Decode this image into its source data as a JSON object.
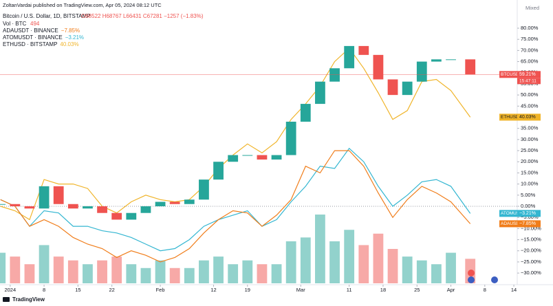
{
  "chart_data": {
    "type": "candlestick",
    "publisher": "ZoltanVardai published on TradingView.com, Apr 05, 2024 08:12 UTC",
    "symbol": "Bitcoin / U.S. Dollar, 1D, BITSTAMP",
    "ohlc": "O68522 H68767 L66431 C67281 −1257 (−1.83%)",
    "scale_mode": "Mixed",
    "brand": "TradingView",
    "x": [
      -2,
      1,
      4,
      7,
      10,
      13,
      16,
      19,
      22,
      25,
      28,
      31,
      34,
      37,
      40,
      43,
      46,
      49,
      52,
      55,
      58,
      61,
      64,
      67,
      70,
      73,
      76,
      79,
      82,
      85,
      88,
      91,
      95
    ],
    "xlim": [
      -2.1,
      104.7
    ],
    "xticks": [
      {
        "value": 0,
        "label": "2024"
      },
      {
        "value": 7,
        "label": "8"
      },
      {
        "value": 14,
        "label": "15"
      },
      {
        "value": 21,
        "label": "22"
      },
      {
        "value": 31,
        "label": "Feb"
      },
      {
        "value": 42,
        "label": "12"
      },
      {
        "value": 49,
        "label": "19"
      },
      {
        "value": 60,
        "label": "Mar"
      },
      {
        "value": 70,
        "label": "11"
      },
      {
        "value": 77,
        "label": "18"
      },
      {
        "value": 84,
        "label": "25"
      },
      {
        "value": 91,
        "label": "Apr"
      },
      {
        "value": 98,
        "label": "8"
      },
      {
        "value": 104,
        "label": "14"
      }
    ],
    "ylim": [
      -34.6,
      83.4
    ],
    "yticks": [
      {
        "value": 80,
        "label": "80.00%"
      },
      {
        "value": 75,
        "label": "75.00%"
      },
      {
        "value": 70,
        "label": "70.00%"
      },
      {
        "value": 65,
        "label": "65.00%"
      },
      {
        "value": 60,
        "label": "60.00%"
      },
      {
        "value": 55,
        "label": "55.00%"
      },
      {
        "value": 50,
        "label": "50.00%"
      },
      {
        "value": 45,
        "label": "45.00%"
      },
      {
        "value": 40,
        "label": "40.00%"
      },
      {
        "value": 35,
        "label": "35.00%"
      },
      {
        "value": 30,
        "label": "30.00%"
      },
      {
        "value": 25,
        "label": "25.00%"
      },
      {
        "value": 20,
        "label": "20.00%"
      },
      {
        "value": 15,
        "label": "15.00%"
      },
      {
        "value": 10,
        "label": "10.00%"
      },
      {
        "value": 5,
        "label": "5.00%"
      },
      {
        "value": 0,
        "label": "0.00%"
      },
      {
        "value": -5,
        "label": "−5.00%"
      },
      {
        "value": -10,
        "label": "−10.00%"
      },
      {
        "value": -15,
        "label": "−15.00%"
      },
      {
        "value": -20,
        "label": "−20.00%"
      },
      {
        "value": -25,
        "label": "−25.00%"
      },
      {
        "value": -30,
        "label": "−30.00%"
      }
    ],
    "grid": false,
    "candles": {
      "name": "BTCUSD",
      "color_up": "#26a69a",
      "color_down": "#ef5350",
      "countdown": "15:47:11",
      "values": [
        1,
        0,
        -1,
        9,
        1,
        -1,
        0,
        -3,
        -6,
        -3,
        0,
        2,
        1,
        3,
        12,
        20,
        23,
        23,
        21,
        23,
        38,
        46,
        56,
        62,
        72,
        68,
        57,
        50,
        56,
        65,
        66,
        66,
        59.21
      ],
      "value_labels": [
        null,
        null,
        null,
        null,
        null,
        null,
        null,
        null,
        null,
        null,
        null,
        null,
        null,
        null,
        null,
        null,
        null,
        null,
        null,
        null,
        null,
        null,
        null,
        null,
        null,
        null,
        null,
        null,
        null,
        null,
        null,
        null,
        "59.21%"
      ]
    },
    "volume": {
      "label": "Vol · BTC",
      "values": [
        616,
        539,
        385,
        770,
        539,
        462,
        385,
        462,
        539,
        385,
        308,
        462,
        308,
        308,
        462,
        539,
        385,
        462,
        385,
        385,
        847,
        924,
        1386,
        847,
        1078,
        770,
        1001,
        693,
        539,
        462,
        385,
        616,
        494
      ]
    },
    "series": [
      {
        "name": "ETHUSD",
        "legend_label": "ETHUSD · BITSTAMP",
        "color": "#f0b429",
        "values": [
          0,
          -2,
          -6,
          12,
          10,
          10,
          8,
          0,
          -3,
          2,
          5,
          3,
          2,
          3,
          9,
          17,
          23,
          28,
          24,
          29,
          39,
          46,
          54,
          65,
          71,
          62,
          51,
          39,
          43,
          56,
          57,
          52,
          40.03
        ],
        "value_labels": [
          null,
          null,
          null,
          null,
          null,
          null,
          null,
          null,
          null,
          null,
          null,
          null,
          null,
          null,
          null,
          null,
          null,
          null,
          null,
          null,
          null,
          null,
          null,
          null,
          null,
          null,
          null,
          null,
          null,
          null,
          null,
          null,
          "40.03%"
        ]
      },
      {
        "name": "ATOMUSDT",
        "legend_label": "ATOMUSDT · BINANCE",
        "color": "#33b6d1",
        "values": [
          3,
          0,
          -9,
          -2,
          -3,
          -9,
          -9,
          -11,
          -12,
          -14,
          -17,
          -20,
          -19,
          -15,
          -9,
          -6,
          -4,
          -2,
          -9,
          -6,
          2,
          9,
          18,
          17,
          26,
          20,
          9,
          0,
          5,
          11,
          12,
          9,
          -3.21
        ],
        "value_labels": [
          null,
          null,
          null,
          null,
          null,
          null,
          null,
          null,
          null,
          null,
          null,
          null,
          null,
          null,
          null,
          null,
          null,
          null,
          null,
          null,
          null,
          null,
          null,
          null,
          null,
          null,
          null,
          null,
          null,
          null,
          null,
          null,
          "−3.21%"
        ]
      },
      {
        "name": "ADAUSDT",
        "legend_label": "ADAUSDT · BINANCE",
        "color": "#f07d1a",
        "values": [
          3,
          0,
          -9,
          -6,
          -9,
          -14,
          -17,
          -19,
          -23,
          -20,
          -22,
          -25,
          -23,
          -19,
          -12,
          -6,
          -2,
          -3,
          -9,
          -4,
          3,
          18,
          15,
          25,
          25,
          18,
          6,
          -5,
          3,
          9,
          6,
          2,
          -7.85
        ],
        "value_labels": [
          null,
          null,
          null,
          null,
          null,
          null,
          null,
          null,
          null,
          null,
          null,
          null,
          null,
          null,
          null,
          null,
          null,
          null,
          null,
          null,
          null,
          null,
          null,
          null,
          null,
          null,
          null,
          null,
          null,
          null,
          null,
          null,
          "−7.85%"
        ]
      }
    ]
  }
}
